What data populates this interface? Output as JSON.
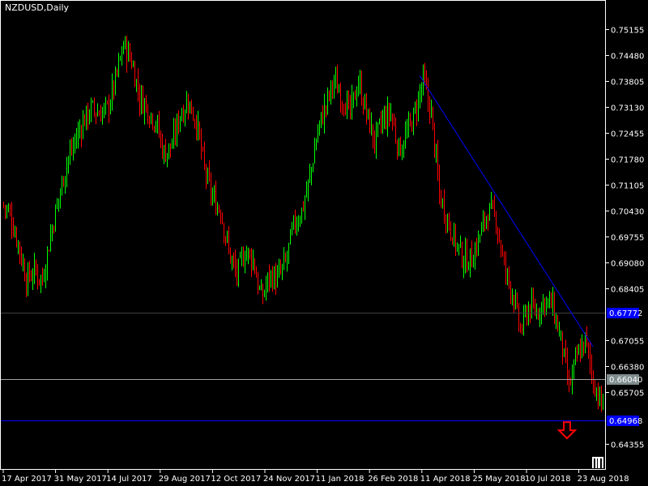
{
  "window": {
    "symbol_timeframe": "NZDUSD,Daily"
  },
  "colors": {
    "background": "#000000",
    "bull": "#00ff00",
    "bear": "#ff0000",
    "axis": "#ffffff",
    "trendline": "#0000ff",
    "level_line": "#0000ff",
    "bid_label_bg": "#7f8c8d",
    "level_label_bg": "#0000ff",
    "arrow": "#ff0000"
  },
  "chart_data": {
    "type": "bar",
    "style": "OHLC bars",
    "symbol": "NZDUSD",
    "timeframe": "Daily",
    "frequency_of_path": "weekly",
    "approx_weekly_close": [
      0.7032,
      0.6959,
      0.6864,
      0.6885,
      0.6864,
      0.698,
      0.7075,
      0.717,
      0.7222,
      0.7275,
      0.7307,
      0.7296,
      0.7307,
      0.7381,
      0.7475,
      0.7433,
      0.7338,
      0.7307,
      0.7275,
      0.7191,
      0.7212,
      0.7296,
      0.7328,
      0.7275,
      0.7148,
      0.7075,
      0.7043,
      0.6937,
      0.6874,
      0.6937,
      0.6916,
      0.6811,
      0.6874,
      0.6864,
      0.6906,
      0.7001,
      0.7043,
      0.7127,
      0.7254,
      0.7317,
      0.7381,
      0.7338,
      0.7296,
      0.7381,
      0.7296,
      0.7222,
      0.7275,
      0.7296,
      0.7201,
      0.7243,
      0.7296,
      0.7381,
      0.7296,
      0.7085,
      0.7022,
      0.6959,
      0.6916,
      0.6916,
      0.698,
      0.7043,
      0.7022,
      0.6895,
      0.6832,
      0.6727,
      0.679,
      0.6779,
      0.6811,
      0.679,
      0.6705,
      0.6579,
      0.6663,
      0.6705,
      0.66,
      0.6537,
      0.6604
    ],
    "ylim": [
      0.6405,
      0.7547
    ],
    "y_ticks": [
      "0.75155",
      "0.74480",
      "0.73805",
      "0.73130",
      "0.72455",
      "0.71780",
      "0.71105",
      "0.70430",
      "0.69755",
      "0.69080",
      "0.68405",
      "0.67055",
      "0.66380",
      "0.65705",
      "0.64355"
    ],
    "x_ticks": [
      "17 Apr 2017",
      "31 May 2017",
      "14 Jul 2017",
      "29 Aug 2017",
      "12 Oct 2017",
      "24 Nov 2017",
      "11 Jan 2018",
      "26 Feb 2018",
      "11 Apr 2018",
      "25 May 2018",
      "10 Jul 2018",
      "23 Aug 2018"
    ],
    "horizontal_lines": [
      {
        "price": 0.67772,
        "label": "0.67772",
        "kind": "level"
      },
      {
        "price": 0.6604,
        "label": "0.66040",
        "kind": "bid"
      },
      {
        "price": 0.64968,
        "label": "0.64968",
        "kind": "level"
      }
    ],
    "trendline": {
      "start": {
        "date": "11 Apr 2018",
        "price": 0.7395
      },
      "end": {
        "date": "Sep 2018",
        "price": 0.6689
      }
    },
    "arrow": {
      "direction": "down",
      "price": 0.6475
    },
    "grid": false
  }
}
